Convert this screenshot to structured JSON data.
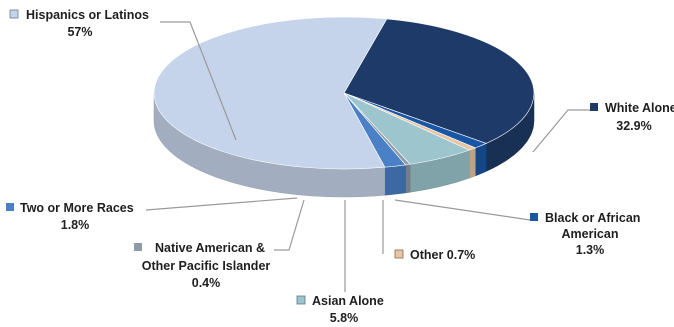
{
  "chart_data": {
    "type": "pie",
    "title": "",
    "three_d": true,
    "legend": "none",
    "slices": [
      {
        "label": "Hispanics or Latinos",
        "value": 57,
        "value_label": "57%",
        "color": "#c5d4ea"
      },
      {
        "label": "White Alone",
        "value": 32.9,
        "value_label": "32.9%",
        "color": "#1e3a68"
      },
      {
        "label": "Black or African American",
        "value": 1.3,
        "value_label": "1.3%",
        "color": "#1a56a6"
      },
      {
        "label": "Other",
        "value": 0.7,
        "value_label": "0.7%",
        "color": "#e8c5a4"
      },
      {
        "label": "Asian Alone",
        "value": 5.8,
        "value_label": "5.8%",
        "color": "#9cc5ce"
      },
      {
        "label": "Native American & Other Pacific Islander",
        "value": 0.4,
        "value_label": "0.4%",
        "color": "#8f9aa6"
      },
      {
        "label": "Two or More Races",
        "value": 1.8,
        "value_label": "1.8%",
        "color": "#4a80c6"
      }
    ]
  },
  "labels": {
    "hispanic": {
      "l1": "Hispanics or Latinos",
      "l2": "57%"
    },
    "white": {
      "l1": "White Alone",
      "l2": "32.9%"
    },
    "black": {
      "l1": "Black or African",
      "l2": "American",
      "l3": "1.3%"
    },
    "other": {
      "l1": "Other 0.7%"
    },
    "asian": {
      "l1": "Asian Alone",
      "l2": "5.8%"
    },
    "native": {
      "l1": "Native American &",
      "l2": "Other Pacific Islander",
      "l3": "0.4%"
    },
    "two": {
      "l1": "Two or More Races",
      "l2": "1.8%"
    }
  }
}
